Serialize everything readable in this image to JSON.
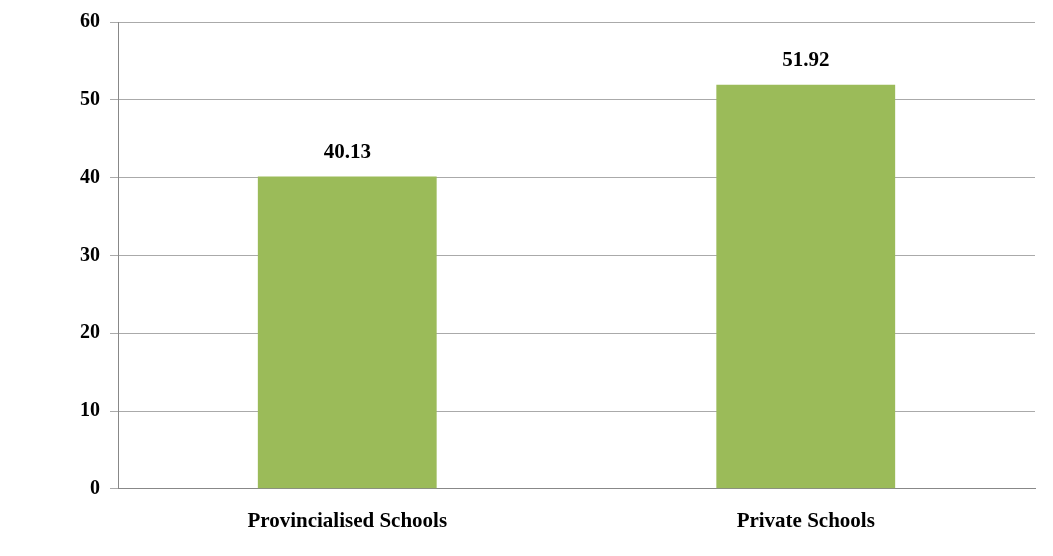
{
  "chart_data": {
    "type": "bar",
    "categories": [
      "Provincialised Schools",
      "Private Schools"
    ],
    "values": [
      40.13,
      51.92
    ],
    "color": "#9bbb59",
    "ylim": [
      0,
      60
    ],
    "yticks": [
      0,
      10,
      20,
      30,
      40,
      50,
      60
    ],
    "grid": "y",
    "data_labels": true
  }
}
